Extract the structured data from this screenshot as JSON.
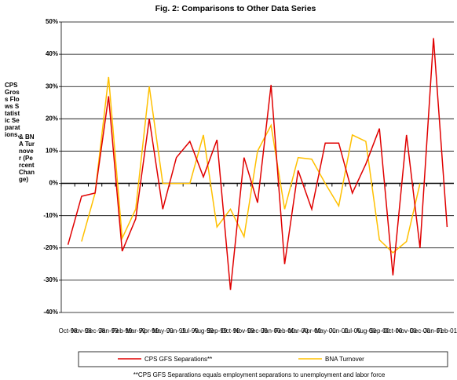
{
  "chart_data": {
    "type": "line",
    "title": "Fig. 2:  Comparisons to Other Data Series",
    "y_label": "CPS Gross Flows Statistic Separations,",
    "y_label_2": "& BNA Turnover (Percent Change)",
    "categories": [
      "Oct-98",
      "Nov-98",
      "Dec-98",
      "Jan-99",
      "Feb-99",
      "Mar-99",
      "Apr-99",
      "May-99",
      "Jun-99",
      "Jul-99",
      "Aug-99",
      "Sep-99",
      "Oct-99",
      "Nov-99",
      "Dec-99",
      "Jan-00",
      "Feb-00",
      "Mar-00",
      "Apr-00",
      "May-00",
      "Jun-00",
      "Jul-00",
      "Aug-00",
      "Sep-00",
      "Oct-00",
      "Nov-00",
      "Dec-00",
      "Jan-01",
      "Feb-01"
    ],
    "series": [
      {
        "name": "CPS GFS Separations**",
        "color": "#e00000",
        "values": [
          -19,
          -4,
          -3,
          27,
          -21,
          -11,
          20,
          -8,
          8,
          13,
          2,
          13.5,
          -33,
          8,
          -6,
          30.5,
          -25,
          4,
          -8,
          12.5,
          12.5,
          -3,
          6,
          17,
          -28.5,
          15,
          -20,
          45,
          -13.5
        ]
      },
      {
        "name": "BNA Turnover",
        "color": "#ffc000",
        "values": [
          null,
          -18,
          -3,
          33,
          -17,
          -8,
          30,
          0,
          0,
          0,
          15,
          -13.5,
          -8,
          -16.5,
          10,
          18,
          -8,
          8,
          7.5,
          0,
          -7,
          15,
          13,
          -17.5,
          -21.5,
          -18,
          0,
          null,
          null
        ]
      }
    ],
    "ylim": [
      -40,
      50
    ],
    "yticks": [
      {
        "value": -40,
        "label": "-40%"
      },
      {
        "value": -30,
        "label": "-30%"
      },
      {
        "value": -20,
        "label": "-20%"
      },
      {
        "value": -10,
        "label": "-10%"
      },
      {
        "value": 0,
        "label": "0%"
      },
      {
        "value": 10,
        "label": "10%"
      },
      {
        "value": 20,
        "label": "20%"
      },
      {
        "value": 30,
        "label": "30%"
      },
      {
        "value": 40,
        "label": "40%"
      },
      {
        "value": 50,
        "label": "50%"
      }
    ],
    "grid": true,
    "legend": "bottom",
    "note": "**CPS GFS Separations equals employment separations to unemployment and labor force"
  }
}
